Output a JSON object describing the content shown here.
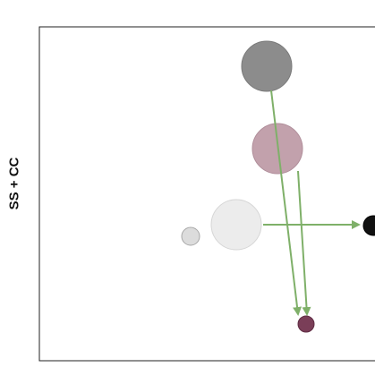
{
  "diagram": {
    "y_axis_label": "SS + CC",
    "nodes": [
      {
        "id": "dark-gray",
        "color": "#8c8c8c",
        "stroke": "#7a7a7a"
      },
      {
        "id": "mauve",
        "color": "#c2a1ac",
        "stroke": "#b08e9a"
      },
      {
        "id": "light-gray-large",
        "color": "#ececec",
        "stroke": "#d6d6d6"
      },
      {
        "id": "light-gray-small",
        "color": "#dcdcdc",
        "stroke": "#a8a8a8"
      },
      {
        "id": "black-edge",
        "color": "#111111",
        "stroke": "#000000"
      },
      {
        "id": "dark-maroon",
        "color": "#7a3e58",
        "stroke": "#5e2b42"
      }
    ],
    "arrows": [
      {
        "from": "dark-gray",
        "to": "dark-maroon",
        "color": "#7fb069"
      },
      {
        "from": "mauve",
        "to": "dark-maroon",
        "color": "#7fb069"
      },
      {
        "from": "light-gray-large",
        "to": "black-edge",
        "color": "#7fb069"
      }
    ]
  }
}
